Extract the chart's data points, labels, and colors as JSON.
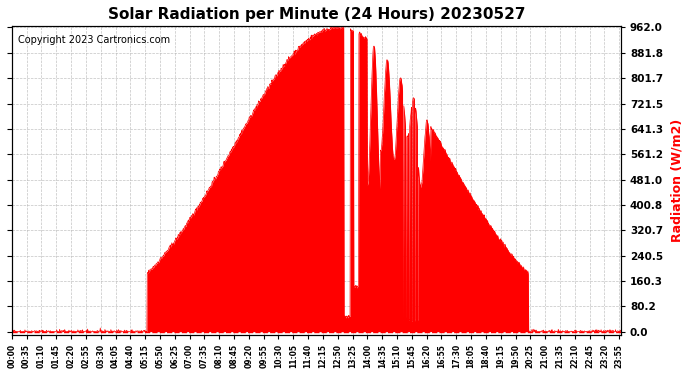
{
  "title": "Solar Radiation per Minute (24 Hours) 20230527",
  "copyright": "Copyright 2023 Cartronics.com",
  "ylabel": "Radiation (W/m2)",
  "ylabel_color": "#ff0000",
  "background_color": "#ffffff",
  "plot_bg_color": "#ffffff",
  "fill_color": "#ff0000",
  "line_color": "#ff0000",
  "dashed_line_color": "#ff0000",
  "grid_color": "#aaaaaa",
  "yticks": [
    0.0,
    80.2,
    160.3,
    240.5,
    320.7,
    400.8,
    481.0,
    561.2,
    641.3,
    721.5,
    801.7,
    881.8,
    962.0
  ],
  "ymax": 962.0,
  "ymin": 0.0,
  "total_minutes": 1440,
  "sunrise": 320,
  "sunset": 1220,
  "peak_time": 780
}
